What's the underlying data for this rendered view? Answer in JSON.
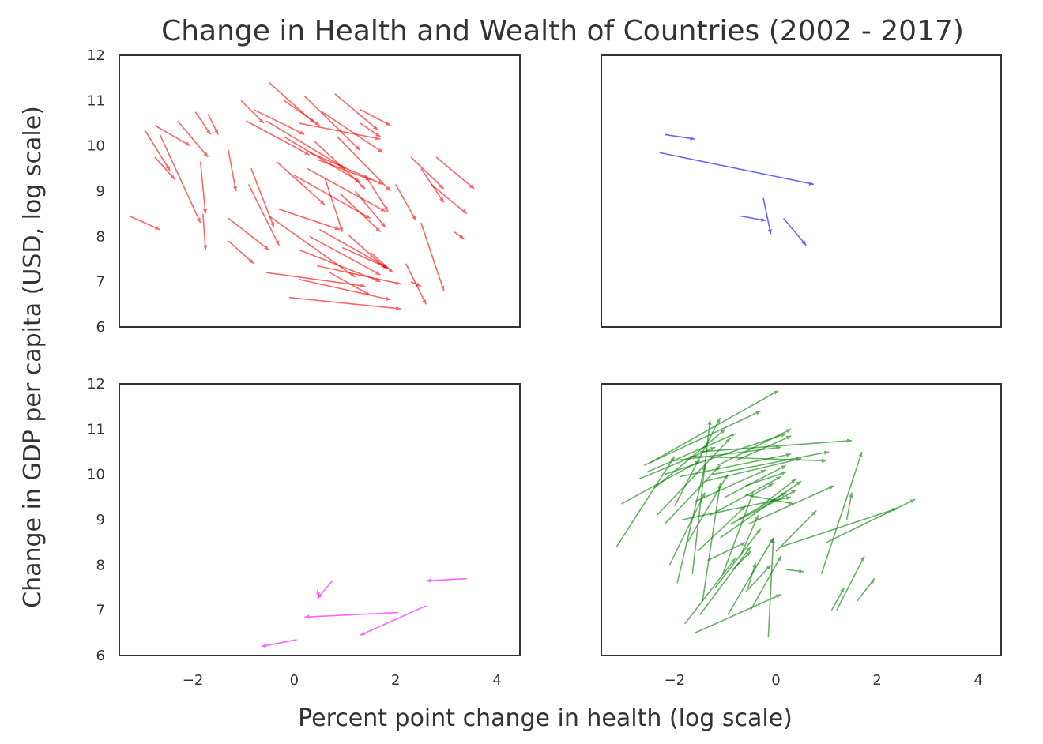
{
  "chart_data": {
    "type": "quiver",
    "title": "Change in Health and Wealth of Countries (2002 - 2017)",
    "xlabel": "Percent point change in health (log scale)",
    "ylabel": "Change in GDP per capita (USD, log scale)",
    "xlim": [
      -3.45,
      4.45
    ],
    "ylim": [
      6,
      12
    ],
    "xticks": [
      -2,
      0,
      2,
      4
    ],
    "xtick_labels": [
      "−2",
      "0",
      "2",
      "4"
    ],
    "yticks": [
      6,
      7,
      8,
      9,
      10,
      11,
      12
    ],
    "ytick_labels": [
      "6",
      "7",
      "8",
      "9",
      "10",
      "11",
      "12"
    ],
    "grid": false,
    "panels": [
      {
        "color": "#ff0000",
        "arrows": [
          [
            -3.25,
            8.45,
            -2.65,
            8.15
          ],
          [
            -2.95,
            10.35,
            -2.45,
            9.45
          ],
          [
            -2.75,
            10.45,
            -2.05,
            10.0
          ],
          [
            -2.65,
            10.25,
            -1.85,
            8.3
          ],
          [
            -2.75,
            9.75,
            -2.35,
            9.25
          ],
          [
            -2.3,
            10.55,
            -1.7,
            9.75
          ],
          [
            -1.95,
            10.75,
            -1.65,
            10.25
          ],
          [
            -1.85,
            9.65,
            -1.75,
            8.5
          ],
          [
            -1.7,
            10.7,
            -1.5,
            10.25
          ],
          [
            -1.8,
            8.5,
            -1.75,
            7.7
          ],
          [
            -1.3,
            9.9,
            -1.15,
            9.0
          ],
          [
            -1.3,
            8.4,
            -0.5,
            7.7
          ],
          [
            -1.3,
            7.9,
            -0.8,
            7.4
          ],
          [
            -1.05,
            11.0,
            -0.6,
            10.5
          ],
          [
            -0.95,
            10.55,
            0.3,
            9.8
          ],
          [
            -0.85,
            9.5,
            -0.4,
            8.2
          ],
          [
            -0.8,
            10.8,
            0.2,
            10.25
          ],
          [
            -0.9,
            9.15,
            -0.3,
            7.8
          ],
          [
            -0.5,
            11.4,
            0.4,
            10.5
          ],
          [
            -0.55,
            10.55,
            1.0,
            9.5
          ],
          [
            -0.5,
            8.45,
            1.2,
            7.1
          ],
          [
            -0.55,
            7.2,
            1.4,
            6.9
          ],
          [
            -0.35,
            9.65,
            0.6,
            8.7
          ],
          [
            -0.3,
            8.6,
            0.9,
            8.15
          ],
          [
            -0.2,
            10.2,
            1.3,
            9.2
          ],
          [
            -0.2,
            11.0,
            0.5,
            10.45
          ],
          [
            0.0,
            9.35,
            1.5,
            8.4
          ],
          [
            0.1,
            10.5,
            1.7,
            10.15
          ],
          [
            0.1,
            7.7,
            1.7,
            7.0
          ],
          [
            0.2,
            11.1,
            1.3,
            9.9
          ],
          [
            0.25,
            9.5,
            1.8,
            8.55
          ],
          [
            0.3,
            9.85,
            1.75,
            9.15
          ],
          [
            0.3,
            8.0,
            1.7,
            7.15
          ],
          [
            0.4,
            10.1,
            1.4,
            9.05
          ],
          [
            0.45,
            9.7,
            1.5,
            9.25
          ],
          [
            0.55,
            10.75,
            1.75,
            9.85
          ],
          [
            0.5,
            8.15,
            1.85,
            7.3
          ],
          [
            0.6,
            9.3,
            0.95,
            8.1
          ],
          [
            0.7,
            7.2,
            1.5,
            6.7
          ],
          [
            0.45,
            7.35,
            2.1,
            6.95
          ],
          [
            0.8,
            11.15,
            1.65,
            10.35
          ],
          [
            0.85,
            10.2,
            1.9,
            9.0
          ],
          [
            0.9,
            8.95,
            1.7,
            8.1
          ],
          [
            0.95,
            7.75,
            1.85,
            7.3
          ],
          [
            1.05,
            8.05,
            1.8,
            7.3
          ],
          [
            1.2,
            9.0,
            1.8,
            8.2
          ],
          [
            1.3,
            10.5,
            1.7,
            10.2
          ],
          [
            1.4,
            9.35,
            1.85,
            8.55
          ],
          [
            1.5,
            7.65,
            1.95,
            7.2
          ],
          [
            1.3,
            10.8,
            1.9,
            10.45
          ],
          [
            2.0,
            9.15,
            2.4,
            8.35
          ],
          [
            2.3,
            9.75,
            2.95,
            9.05
          ],
          [
            2.5,
            9.5,
            2.95,
            8.75
          ],
          [
            2.8,
            9.75,
            3.55,
            9.05
          ],
          [
            2.7,
            9.15,
            3.4,
            8.5
          ],
          [
            2.5,
            8.3,
            2.95,
            6.8
          ],
          [
            2.2,
            7.4,
            2.6,
            6.5
          ],
          [
            2.3,
            7.0,
            2.5,
            6.9
          ],
          [
            3.15,
            8.1,
            3.35,
            7.95
          ],
          [
            -0.1,
            6.65,
            2.1,
            6.4
          ],
          [
            0.1,
            7.05,
            1.9,
            6.6
          ]
        ]
      },
      {
        "color": "#0000ff",
        "arrows": [
          [
            -2.2,
            10.25,
            -1.6,
            10.15
          ],
          [
            -2.3,
            9.85,
            0.75,
            9.15
          ],
          [
            -0.7,
            8.45,
            -0.2,
            8.35
          ],
          [
            -0.25,
            8.85,
            -0.1,
            8.05
          ],
          [
            0.15,
            8.4,
            0.6,
            7.8
          ]
        ]
      },
      {
        "color": "#ff00ff",
        "arrows": [
          [
            3.4,
            7.7,
            2.6,
            7.65
          ],
          [
            2.6,
            7.1,
            1.3,
            6.45
          ],
          [
            2.05,
            6.95,
            0.2,
            6.85
          ],
          [
            0.75,
            7.65,
            0.45,
            7.25
          ],
          [
            0.45,
            7.45,
            0.5,
            7.3
          ],
          [
            0.05,
            6.35,
            -0.65,
            6.2
          ]
        ]
      },
      {
        "color": "#008000",
        "arrows": [
          [
            -3.15,
            8.4,
            -2.0,
            10.4
          ],
          [
            -3.05,
            9.35,
            -1.5,
            10.3
          ],
          [
            -2.7,
            9.9,
            -1.2,
            10.6
          ],
          [
            -2.55,
            10.05,
            -0.8,
            10.9
          ],
          [
            -2.6,
            10.2,
            -0.3,
            11.4
          ],
          [
            -2.5,
            10.25,
            0.05,
            11.85
          ],
          [
            -2.4,
            9.7,
            -1.0,
            11.0
          ],
          [
            -2.35,
            9.1,
            -0.9,
            10.8
          ],
          [
            -2.2,
            10.0,
            0.2,
            10.9
          ],
          [
            -2.2,
            8.9,
            -1.1,
            10.2
          ],
          [
            -2.1,
            8.0,
            -1.4,
            9.6
          ],
          [
            -2.05,
            10.3,
            0.1,
            10.6
          ],
          [
            -2.0,
            9.3,
            -1.1,
            11.25
          ],
          [
            -1.95,
            7.6,
            -1.4,
            10.2
          ],
          [
            -1.9,
            9.95,
            0.3,
            10.45
          ],
          [
            -1.85,
            9.0,
            0.3,
            9.5
          ],
          [
            -1.8,
            6.7,
            -0.8,
            8.15
          ],
          [
            -1.75,
            8.5,
            -0.95,
            10.0
          ],
          [
            -1.7,
            10.4,
            1.0,
            10.3
          ],
          [
            -1.65,
            7.8,
            -1.3,
            11.2
          ],
          [
            -1.6,
            9.4,
            -0.2,
            10.1
          ],
          [
            -1.55,
            8.3,
            -0.6,
            9.3
          ],
          [
            -1.5,
            10.5,
            1.5,
            10.75
          ],
          [
            -1.5,
            6.9,
            -0.5,
            8.4
          ],
          [
            -1.45,
            7.2,
            -1.1,
            9.8
          ],
          [
            -1.4,
            9.85,
            0.5,
            10.35
          ],
          [
            -1.35,
            8.1,
            -0.6,
            8.5
          ],
          [
            -1.3,
            9.1,
            0.1,
            9.95
          ],
          [
            -1.25,
            10.0,
            1.05,
            10.5
          ],
          [
            -1.2,
            7.5,
            -0.3,
            8.8
          ],
          [
            -1.15,
            10.2,
            0.3,
            11.0
          ],
          [
            -1.1,
            8.6,
            0.5,
            9.85
          ],
          [
            -1.05,
            7.8,
            -0.45,
            9.6
          ],
          [
            -1.0,
            9.5,
            0.2,
            10.2
          ],
          [
            -0.95,
            6.9,
            -0.05,
            8.6
          ],
          [
            -0.9,
            8.9,
            0.4,
            9.65
          ],
          [
            -0.85,
            7.9,
            -0.5,
            8.3
          ],
          [
            -0.8,
            10.3,
            0.3,
            10.85
          ],
          [
            -0.75,
            9.0,
            0.2,
            9.6
          ],
          [
            -0.7,
            8.2,
            -0.35,
            9.1
          ],
          [
            -0.6,
            9.75,
            0.2,
            10.05
          ],
          [
            -0.55,
            7.5,
            -0.4,
            8.05
          ],
          [
            -0.55,
            8.9,
            1.15,
            9.75
          ],
          [
            -0.45,
            9.55,
            -0.05,
            9.8
          ],
          [
            -0.5,
            7.0,
            0.1,
            8.2
          ],
          [
            -0.6,
            7.4,
            -0.1,
            8.0
          ],
          [
            -0.3,
            9.3,
            0.4,
            9.9
          ],
          [
            -1.6,
            6.5,
            0.1,
            7.35
          ],
          [
            -0.15,
            6.4,
            -0.05,
            8.6
          ],
          [
            0.2,
            7.9,
            0.55,
            7.85
          ],
          [
            0.0,
            8.3,
            0.8,
            9.2
          ],
          [
            0.9,
            7.8,
            1.7,
            10.5
          ],
          [
            0.1,
            8.4,
            2.4,
            9.25
          ],
          [
            1.0,
            8.5,
            2.75,
            9.45
          ],
          [
            1.1,
            7.0,
            1.35,
            7.5
          ],
          [
            1.2,
            7.0,
            1.75,
            8.2
          ],
          [
            1.6,
            7.2,
            1.95,
            7.7
          ],
          [
            1.4,
            9.0,
            1.5,
            9.6
          ],
          [
            -0.6,
            9.55,
            0.35,
            9.35
          ]
        ]
      }
    ]
  }
}
